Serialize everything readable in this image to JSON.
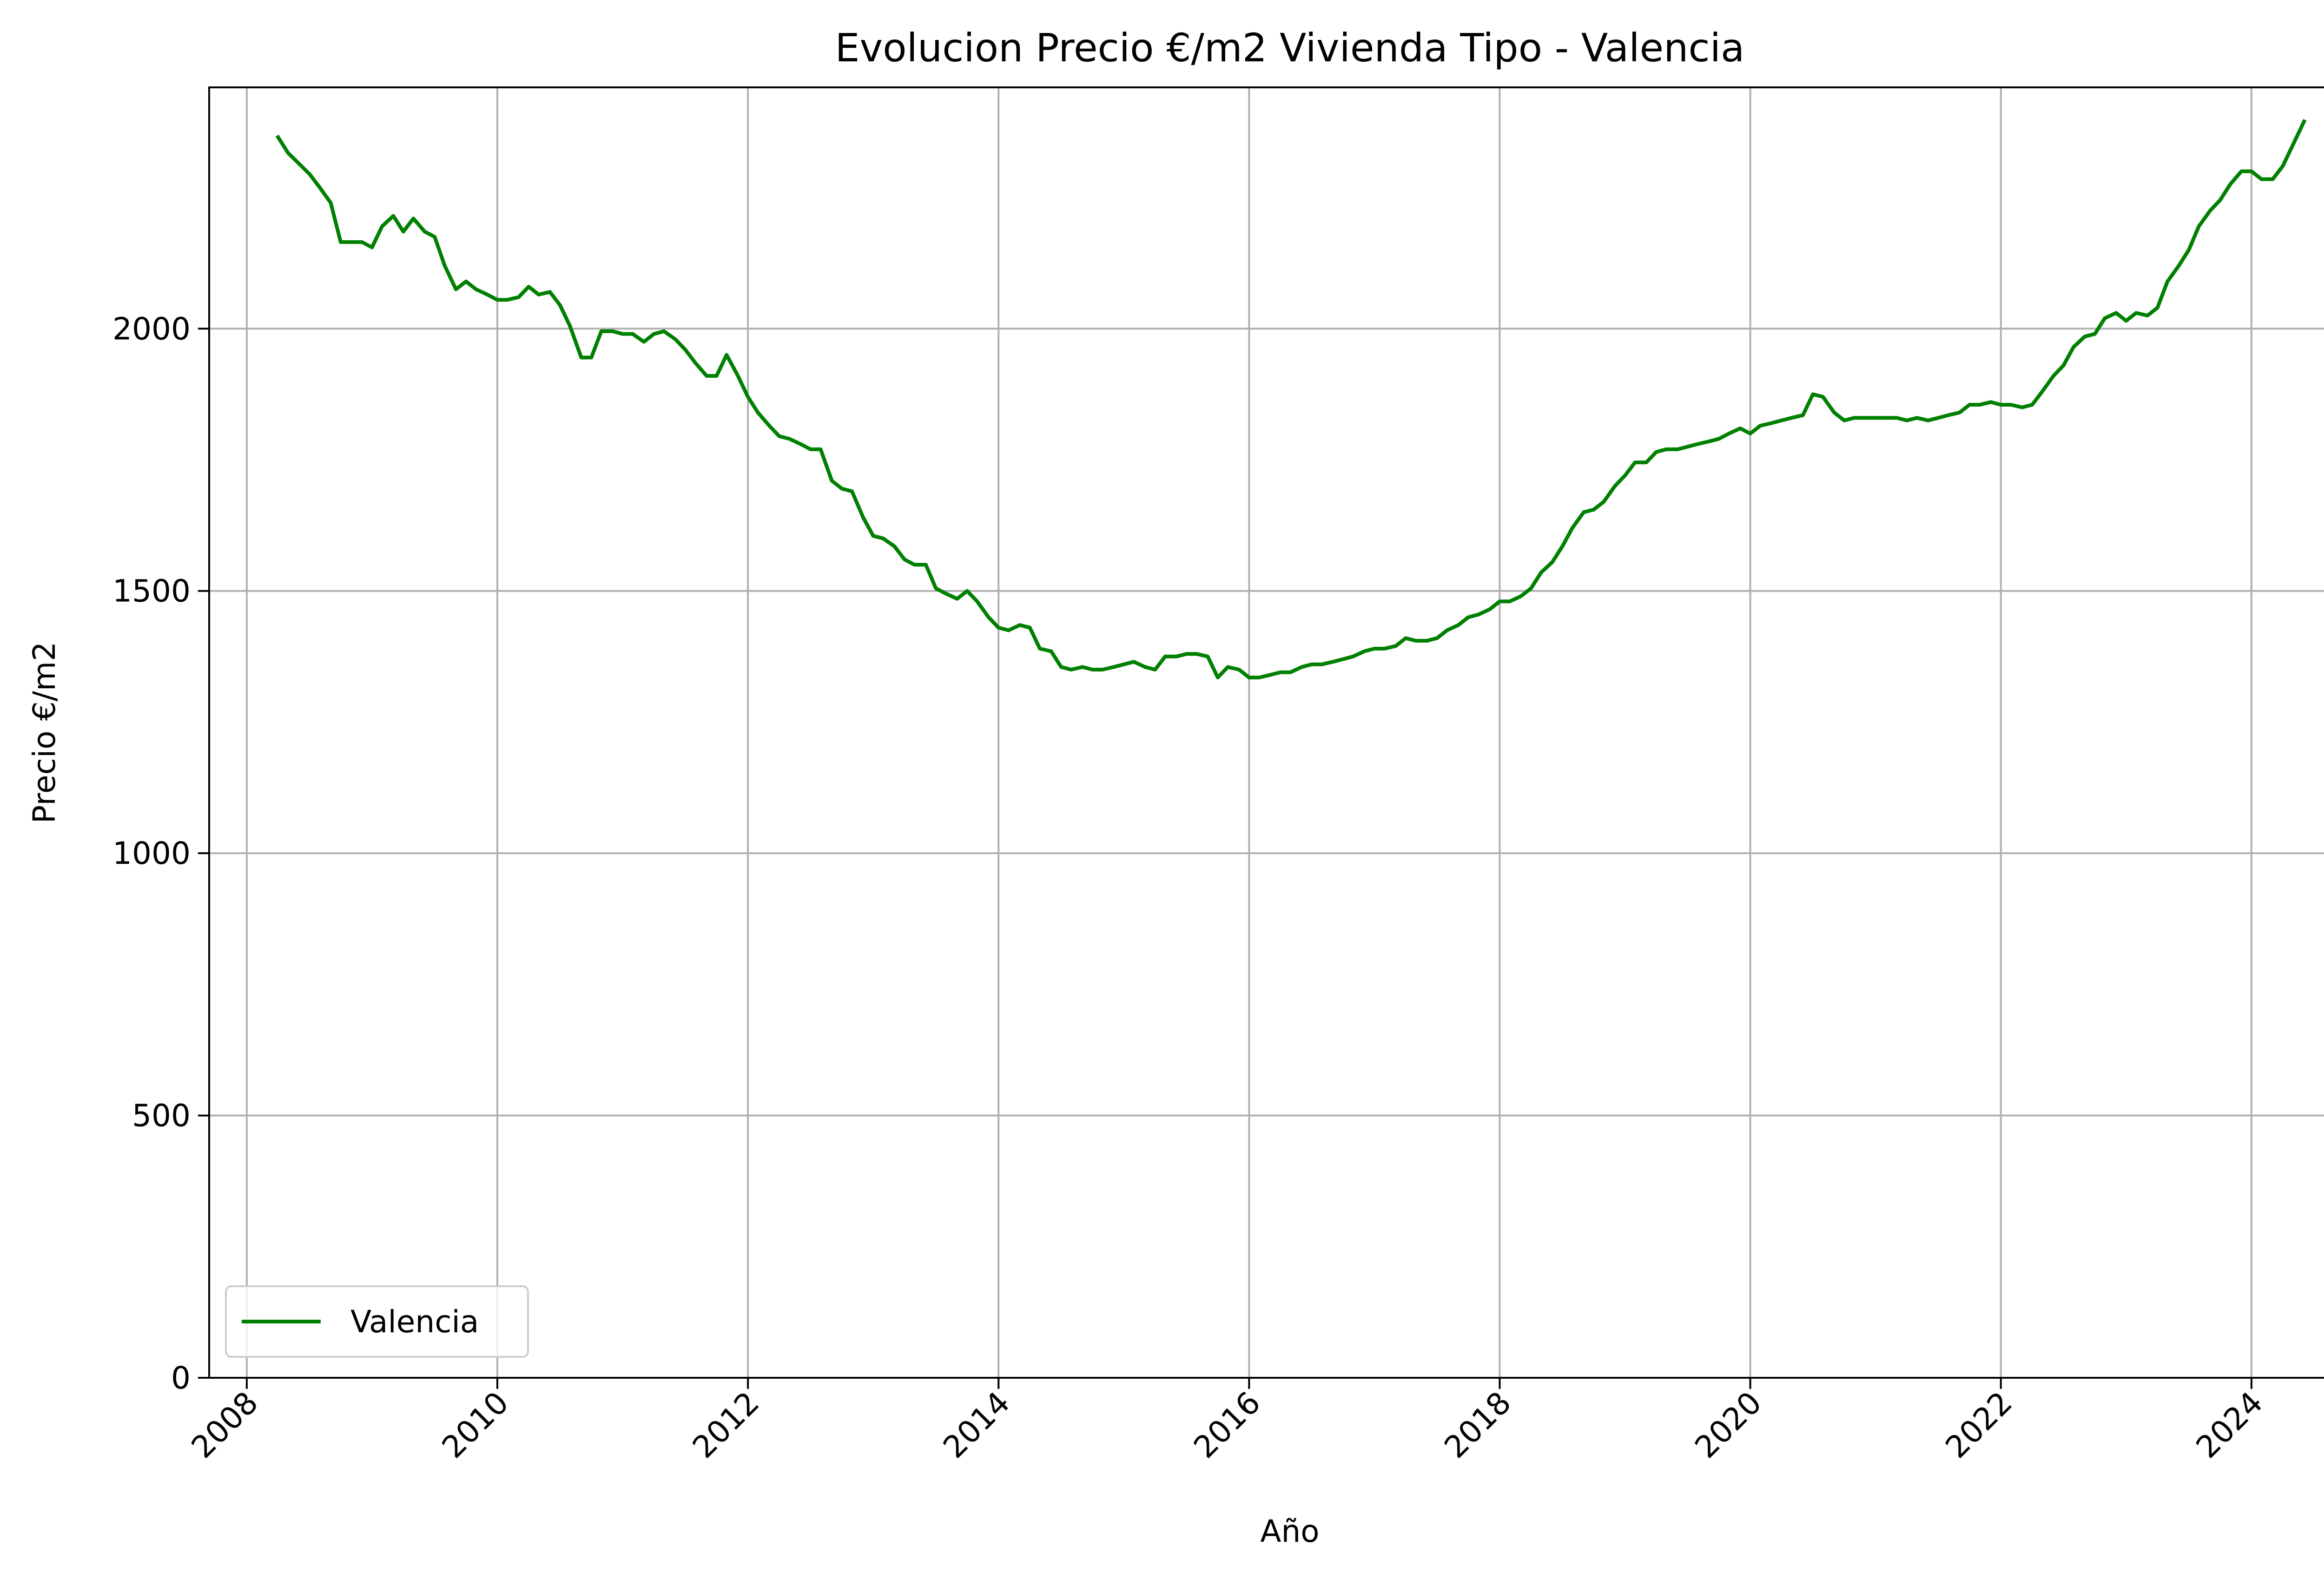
{
  "chart_data": {
    "type": "line",
    "title": "Evolucion Precio €/m2 Vivienda Tipo - Valencia",
    "xlabel": "Año",
    "ylabel": "Precio €/m2",
    "xlim": [
      2007.7,
      2024.95
    ],
    "ylim": [
      0,
      2460
    ],
    "x_ticks": [
      2008,
      2010,
      2012,
      2014,
      2016,
      2018,
      2020,
      2022,
      2024
    ],
    "x_tick_labels": [
      "2008",
      "2010",
      "2012",
      "2014",
      "2016",
      "2018",
      "2020",
      "2022",
      "2024"
    ],
    "y_ticks": [
      0,
      500,
      1000,
      1500,
      2000
    ],
    "y_tick_labels": [
      "0",
      "500",
      "1000",
      "1500",
      "2000"
    ],
    "grid": true,
    "legend_position": "lower-left",
    "color": "#008000",
    "series": [
      {
        "name": "Valencia",
        "points": [
          [
            2008.25,
            2365
          ],
          [
            2008.33,
            2335
          ],
          [
            2008.5,
            2295
          ],
          [
            2008.58,
            2270
          ],
          [
            2008.67,
            2240
          ],
          [
            2008.75,
            2165
          ],
          [
            2008.92,
            2165
          ],
          [
            2009.0,
            2155
          ],
          [
            2009.08,
            2195
          ],
          [
            2009.17,
            2215
          ],
          [
            2009.25,
            2185
          ],
          [
            2009.33,
            2210
          ],
          [
            2009.42,
            2185
          ],
          [
            2009.5,
            2175
          ],
          [
            2009.58,
            2120
          ],
          [
            2009.67,
            2075
          ],
          [
            2009.75,
            2090
          ],
          [
            2009.83,
            2075
          ],
          [
            2009.92,
            2065
          ],
          [
            2010.0,
            2055
          ],
          [
            2010.08,
            2055
          ],
          [
            2010.17,
            2060
          ],
          [
            2010.25,
            2080
          ],
          [
            2010.33,
            2065
          ],
          [
            2010.42,
            2070
          ],
          [
            2010.5,
            2045
          ],
          [
            2010.58,
            2005
          ],
          [
            2010.67,
            1945
          ],
          [
            2010.75,
            1945
          ],
          [
            2010.83,
            1995
          ],
          [
            2010.92,
            1995
          ],
          [
            2011.0,
            1990
          ],
          [
            2011.08,
            1990
          ],
          [
            2011.17,
            1975
          ],
          [
            2011.25,
            1990
          ],
          [
            2011.33,
            1995
          ],
          [
            2011.42,
            1980
          ],
          [
            2011.5,
            1960
          ],
          [
            2011.58,
            1935
          ],
          [
            2011.67,
            1910
          ],
          [
            2011.75,
            1910
          ],
          [
            2011.83,
            1950
          ],
          [
            2011.92,
            1910
          ],
          [
            2012.0,
            1870
          ],
          [
            2012.08,
            1840
          ],
          [
            2012.17,
            1815
          ],
          [
            2012.25,
            1795
          ],
          [
            2012.33,
            1790
          ],
          [
            2012.42,
            1780
          ],
          [
            2012.5,
            1770
          ],
          [
            2012.58,
            1770
          ],
          [
            2012.67,
            1710
          ],
          [
            2012.75,
            1695
          ],
          [
            2012.83,
            1690
          ],
          [
            2012.92,
            1640
          ],
          [
            2013.0,
            1605
          ],
          [
            2013.08,
            1600
          ],
          [
            2013.17,
            1585
          ],
          [
            2013.25,
            1560
          ],
          [
            2013.33,
            1550
          ],
          [
            2013.42,
            1550
          ],
          [
            2013.5,
            1505
          ],
          [
            2013.58,
            1495
          ],
          [
            2013.67,
            1485
          ],
          [
            2013.75,
            1500
          ],
          [
            2013.83,
            1480
          ],
          [
            2013.92,
            1450
          ],
          [
            2014.0,
            1430
          ],
          [
            2014.08,
            1425
          ],
          [
            2014.17,
            1435
          ],
          [
            2014.25,
            1430
          ],
          [
            2014.33,
            1390
          ],
          [
            2014.42,
            1385
          ],
          [
            2014.5,
            1355
          ],
          [
            2014.58,
            1350
          ],
          [
            2014.67,
            1355
          ],
          [
            2014.75,
            1350
          ],
          [
            2014.83,
            1350
          ],
          [
            2014.92,
            1355
          ],
          [
            2015.0,
            1360
          ],
          [
            2015.08,
            1365
          ],
          [
            2015.17,
            1355
          ],
          [
            2015.25,
            1350
          ],
          [
            2015.33,
            1375
          ],
          [
            2015.42,
            1375
          ],
          [
            2015.5,
            1380
          ],
          [
            2015.58,
            1380
          ],
          [
            2015.67,
            1375
          ],
          [
            2015.75,
            1335
          ],
          [
            2015.83,
            1355
          ],
          [
            2015.92,
            1350
          ],
          [
            2016.0,
            1335
          ],
          [
            2016.08,
            1335
          ],
          [
            2016.17,
            1340
          ],
          [
            2016.25,
            1345
          ],
          [
            2016.33,
            1345
          ],
          [
            2016.42,
            1355
          ],
          [
            2016.5,
            1360
          ],
          [
            2016.58,
            1360
          ],
          [
            2016.67,
            1365
          ],
          [
            2016.75,
            1370
          ],
          [
            2016.83,
            1375
          ],
          [
            2016.92,
            1385
          ],
          [
            2017.0,
            1390
          ],
          [
            2017.08,
            1390
          ],
          [
            2017.17,
            1395
          ],
          [
            2017.25,
            1410
          ],
          [
            2017.33,
            1405
          ],
          [
            2017.42,
            1405
          ],
          [
            2017.5,
            1410
          ],
          [
            2017.58,
            1425
          ],
          [
            2017.67,
            1435
          ],
          [
            2017.75,
            1450
          ],
          [
            2017.83,
            1455
          ],
          [
            2017.92,
            1465
          ],
          [
            2018.0,
            1480
          ],
          [
            2018.08,
            1480
          ],
          [
            2018.17,
            1490
          ],
          [
            2018.25,
            1505
          ],
          [
            2018.33,
            1535
          ],
          [
            2018.42,
            1555
          ],
          [
            2018.5,
            1585
          ],
          [
            2018.58,
            1620
          ],
          [
            2018.67,
            1650
          ],
          [
            2018.75,
            1655
          ],
          [
            2018.83,
            1670
          ],
          [
            2018.92,
            1700
          ],
          [
            2019.0,
            1720
          ],
          [
            2019.08,
            1745
          ],
          [
            2019.17,
            1745
          ],
          [
            2019.25,
            1765
          ],
          [
            2019.33,
            1770
          ],
          [
            2019.42,
            1770
          ],
          [
            2019.5,
            1775
          ],
          [
            2019.58,
            1780
          ],
          [
            2019.67,
            1785
          ],
          [
            2019.75,
            1790
          ],
          [
            2019.83,
            1800
          ],
          [
            2019.92,
            1810
          ],
          [
            2020.0,
            1800
          ],
          [
            2020.08,
            1815
          ],
          [
            2020.17,
            1820
          ],
          [
            2020.25,
            1825
          ],
          [
            2020.33,
            1830
          ],
          [
            2020.42,
            1835
          ],
          [
            2020.5,
            1875
          ],
          [
            2020.58,
            1870
          ],
          [
            2020.67,
            1840
          ],
          [
            2020.75,
            1825
          ],
          [
            2020.83,
            1830
          ],
          [
            2020.92,
            1830
          ],
          [
            2021.0,
            1830
          ],
          [
            2021.08,
            1830
          ],
          [
            2021.17,
            1830
          ],
          [
            2021.25,
            1825
          ],
          [
            2021.33,
            1830
          ],
          [
            2021.42,
            1825
          ],
          [
            2021.5,
            1830
          ],
          [
            2021.58,
            1835
          ],
          [
            2021.67,
            1840
          ],
          [
            2021.75,
            1855
          ],
          [
            2021.83,
            1855
          ],
          [
            2021.92,
            1860
          ],
          [
            2022.0,
            1855
          ],
          [
            2022.08,
            1855
          ],
          [
            2022.17,
            1850
          ],
          [
            2022.25,
            1855
          ],
          [
            2022.33,
            1880
          ],
          [
            2022.42,
            1910
          ],
          [
            2022.5,
            1930
          ],
          [
            2022.58,
            1965
          ],
          [
            2022.67,
            1985
          ],
          [
            2022.75,
            1990
          ],
          [
            2022.83,
            2020
          ],
          [
            2022.92,
            2030
          ],
          [
            2023.0,
            2015
          ],
          [
            2023.08,
            2030
          ],
          [
            2023.17,
            2025
          ],
          [
            2023.25,
            2040
          ],
          [
            2023.33,
            2090
          ],
          [
            2023.42,
            2120
          ],
          [
            2023.5,
            2150
          ],
          [
            2023.58,
            2195
          ],
          [
            2023.67,
            2225
          ],
          [
            2023.75,
            2245
          ],
          [
            2023.83,
            2275
          ],
          [
            2023.92,
            2300
          ],
          [
            2024.0,
            2300
          ],
          [
            2024.08,
            2285
          ],
          [
            2024.17,
            2285
          ],
          [
            2024.25,
            2310
          ],
          [
            2024.33,
            2350
          ],
          [
            2024.42,
            2395
          ]
        ]
      }
    ]
  }
}
